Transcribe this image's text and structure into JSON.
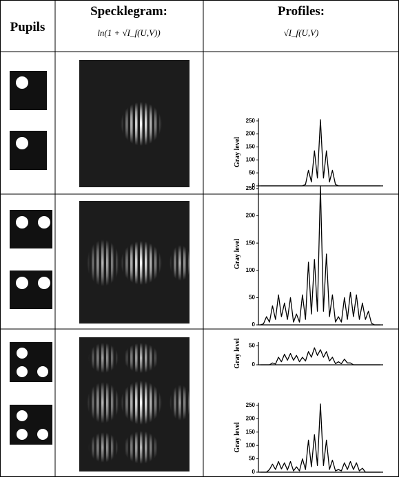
{
  "header": {
    "pupils": "Pupils",
    "specklegram": "Specklegram:",
    "specklegram_formula": "ln(1 + √I_f(U,V))",
    "profiles": "Profiles:",
    "profiles_formula": "√I_f(U,V)"
  },
  "rows": [
    {
      "profiles": [
        {
          "type": "line",
          "ylabel": "Gray level",
          "ylim": [
            0,
            260
          ],
          "yticks": [
            0,
            50,
            100,
            150,
            200,
            250
          ],
          "values": [
            0,
            0,
            0,
            0,
            0,
            0,
            0,
            0,
            0,
            0,
            0,
            0,
            0,
            0,
            0,
            5,
            60,
            15,
            135,
            30,
            255,
            30,
            135,
            15,
            60,
            5,
            0,
            0,
            0,
            0,
            0,
            0,
            0,
            0,
            0,
            0,
            0,
            0,
            0,
            0,
            0
          ]
        }
      ]
    },
    {
      "profiles": [
        {
          "type": "line",
          "ylabel": "Gray level",
          "ylim": [
            0,
            260
          ],
          "yticks": [
            0,
            50,
            100,
            150,
            200,
            250
          ],
          "values": [
            0,
            2,
            15,
            5,
            35,
            10,
            55,
            15,
            40,
            10,
            50,
            5,
            20,
            5,
            55,
            10,
            115,
            20,
            120,
            25,
            255,
            25,
            130,
            15,
            55,
            5,
            15,
            5,
            50,
            10,
            60,
            15,
            55,
            10,
            40,
            10,
            25,
            3,
            0,
            0,
            0
          ]
        }
      ]
    },
    {
      "profiles": [
        {
          "type": "line",
          "ylabel": "Gray level",
          "ylim": [
            0,
            60
          ],
          "yticks": [
            0,
            50
          ],
          "values": [
            0,
            0,
            0,
            0,
            5,
            2,
            20,
            8,
            28,
            12,
            30,
            12,
            25,
            8,
            20,
            10,
            35,
            20,
            45,
            25,
            40,
            20,
            35,
            10,
            20,
            3,
            8,
            3,
            15,
            5,
            5,
            0,
            0,
            0,
            0,
            0,
            0,
            0,
            0,
            0,
            0
          ]
        },
        {
          "type": "line",
          "ylabel": "Gray level",
          "ylim": [
            0,
            260
          ],
          "yticks": [
            0,
            50,
            100,
            150,
            200,
            250
          ],
          "values": [
            0,
            0,
            0,
            10,
            30,
            10,
            40,
            12,
            35,
            8,
            40,
            5,
            20,
            5,
            50,
            10,
            120,
            20,
            140,
            25,
            255,
            25,
            120,
            10,
            45,
            5,
            10,
            5,
            35,
            10,
            40,
            10,
            35,
            5,
            15,
            0,
            0,
            0,
            0,
            0,
            0
          ]
        }
      ]
    }
  ]
}
